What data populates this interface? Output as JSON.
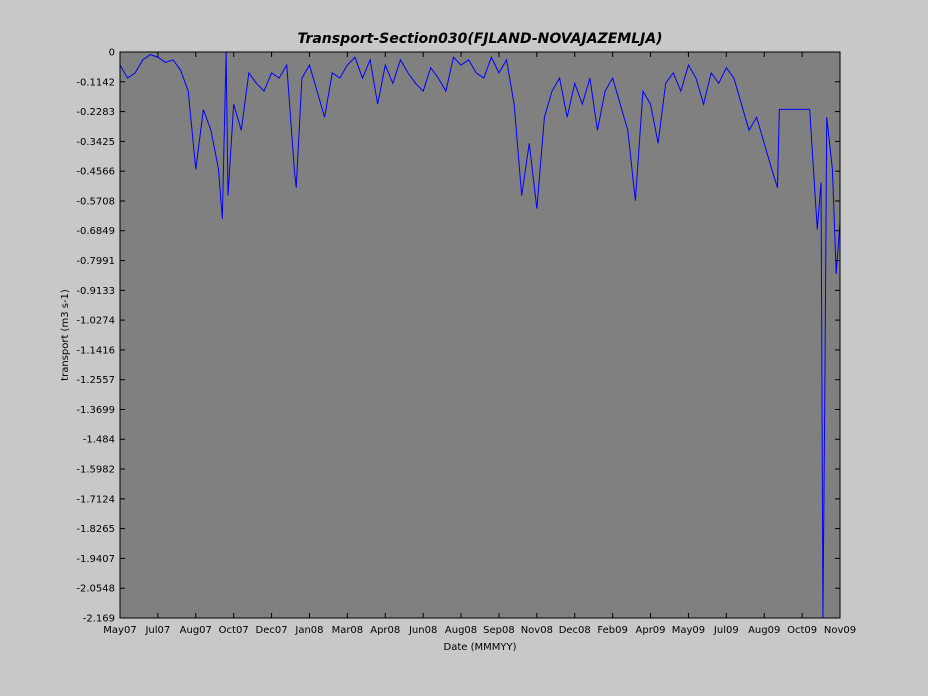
{
  "chart_data": {
    "type": "line",
    "title": "Transport-Section030(FJLAND-NOVAJAZEMLJA)",
    "x_label": "Date (MMMYY)",
    "y_label": "transport (m3 s-1)",
    "xlim": [
      0,
      19
    ],
    "ylim": [
      -2.169,
      0
    ],
    "xticks": [
      {
        "value": 0,
        "label": "May07"
      },
      {
        "value": 1,
        "label": "Jul07"
      },
      {
        "value": 2,
        "label": "Aug07"
      },
      {
        "value": 3,
        "label": "Oct07"
      },
      {
        "value": 4,
        "label": "Dec07"
      },
      {
        "value": 5,
        "label": "Jan08"
      },
      {
        "value": 6,
        "label": "Mar08"
      },
      {
        "value": 7,
        "label": "Apr08"
      },
      {
        "value": 8,
        "label": "Jun08"
      },
      {
        "value": 9,
        "label": "Aug08"
      },
      {
        "value": 10,
        "label": "Sep08"
      },
      {
        "value": 11,
        "label": "Nov08"
      },
      {
        "value": 12,
        "label": "Dec08"
      },
      {
        "value": 13,
        "label": "Feb09"
      },
      {
        "value": 14,
        "label": "Apr09"
      },
      {
        "value": 15,
        "label": "May09"
      },
      {
        "value": 16,
        "label": "Jul09"
      },
      {
        "value": 17,
        "label": "Aug09"
      },
      {
        "value": 18,
        "label": "Oct09"
      },
      {
        "value": 19,
        "label": "Nov09"
      }
    ],
    "yticks": [
      0,
      -0.1142,
      -0.2283,
      -0.3425,
      -0.4566,
      -0.5708,
      -0.6849,
      -0.7991,
      -0.9133,
      -1.0274,
      -1.1416,
      -1.2557,
      -1.3699,
      -1.484,
      -1.5982,
      -1.7124,
      -1.8265,
      -1.9407,
      -2.0548,
      -2.169
    ],
    "series": [
      {
        "color": "#0000ff",
        "x": [
          0,
          0.2,
          0.4,
          0.6,
          0.8,
          1.0,
          1.2,
          1.4,
          1.6,
          1.8,
          2.0,
          2.2,
          2.4,
          2.6,
          2.7,
          2.8,
          2.85,
          3.0,
          3.2,
          3.4,
          3.6,
          3.8,
          4.0,
          4.2,
          4.4,
          4.6,
          4.65,
          4.8,
          5.0,
          5.2,
          5.4,
          5.6,
          5.8,
          6.0,
          6.2,
          6.4,
          6.6,
          6.8,
          7.0,
          7.2,
          7.4,
          7.6,
          7.8,
          8.0,
          8.2,
          8.4,
          8.6,
          8.8,
          9.0,
          9.2,
          9.4,
          9.6,
          9.8,
          10.0,
          10.2,
          10.4,
          10.6,
          10.8,
          11.0,
          11.2,
          11.4,
          11.6,
          11.8,
          12.0,
          12.2,
          12.4,
          12.6,
          12.8,
          13.0,
          13.2,
          13.4,
          13.6,
          13.8,
          14.0,
          14.2,
          14.4,
          14.6,
          14.8,
          15.0,
          15.2,
          15.4,
          15.6,
          15.8,
          16.0,
          16.2,
          16.4,
          16.6,
          16.8,
          17.0,
          17.2,
          17.35,
          17.4,
          17.6,
          17.8,
          18.0,
          18.2,
          18.4,
          18.5,
          18.55,
          18.6,
          18.65,
          18.8,
          18.9,
          19.0
        ],
        "values": [
          -0.05,
          -0.1,
          -0.08,
          -0.03,
          -0.01,
          -0.02,
          -0.04,
          -0.03,
          -0.07,
          -0.15,
          -0.45,
          -0.22,
          -0.3,
          -0.45,
          -0.64,
          0,
          -0.55,
          -0.2,
          -0.3,
          -0.08,
          -0.12,
          -0.15,
          -0.08,
          -0.1,
          -0.05,
          -0.45,
          -0.52,
          -0.1,
          -0.05,
          -0.15,
          -0.25,
          -0.08,
          -0.1,
          -0.05,
          -0.02,
          -0.1,
          -0.03,
          -0.2,
          -0.05,
          -0.12,
          -0.03,
          -0.08,
          -0.12,
          -0.15,
          -0.06,
          -0.1,
          -0.15,
          -0.02,
          -0.05,
          -0.03,
          -0.08,
          -0.1,
          -0.02,
          -0.08,
          -0.03,
          -0.2,
          -0.55,
          -0.35,
          -0.6,
          -0.25,
          -0.15,
          -0.1,
          -0.25,
          -0.12,
          -0.2,
          -0.1,
          -0.3,
          -0.15,
          -0.1,
          -0.2,
          -0.3,
          -0.57,
          -0.15,
          -0.2,
          -0.35,
          -0.12,
          -0.08,
          -0.15,
          -0.05,
          -0.1,
          -0.2,
          -0.08,
          -0.12,
          -0.06,
          -0.1,
          -0.2,
          -0.3,
          -0.25,
          -0.35,
          -0.45,
          -0.52,
          -0.22,
          -0.22,
          -0.22,
          -0.22,
          -0.22,
          -0.68,
          -0.5,
          -2.169,
          -1.3,
          -0.25,
          -0.45,
          -0.85,
          -0.65
        ]
      }
    ]
  }
}
